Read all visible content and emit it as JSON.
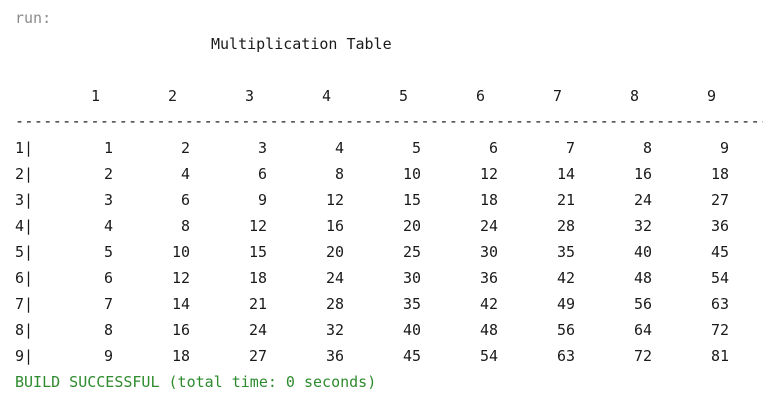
{
  "console": {
    "run_label": "run:",
    "title": "Multiplication Table",
    "header": [
      "1",
      "2",
      "3",
      "4",
      "5",
      "6",
      "7",
      "8",
      "9"
    ],
    "separator": "--------------------------------------------------------------------------------------------------",
    "rows": [
      {
        "label": "1|",
        "values": [
          "1",
          "2",
          "3",
          "4",
          "5",
          "6",
          "7",
          "8",
          "9"
        ]
      },
      {
        "label": "2|",
        "values": [
          "2",
          "4",
          "6",
          "8",
          "10",
          "12",
          "14",
          "16",
          "18"
        ]
      },
      {
        "label": "3|",
        "values": [
          "3",
          "6",
          "9",
          "12",
          "15",
          "18",
          "21",
          "24",
          "27"
        ]
      },
      {
        "label": "4|",
        "values": [
          "4",
          "8",
          "12",
          "16",
          "20",
          "24",
          "28",
          "32",
          "36"
        ]
      },
      {
        "label": "5|",
        "values": [
          "5",
          "10",
          "15",
          "20",
          "25",
          "30",
          "35",
          "40",
          "45"
        ]
      },
      {
        "label": "6|",
        "values": [
          "6",
          "12",
          "18",
          "24",
          "30",
          "36",
          "42",
          "48",
          "54"
        ]
      },
      {
        "label": "7|",
        "values": [
          "7",
          "14",
          "21",
          "28",
          "35",
          "42",
          "49",
          "56",
          "63"
        ]
      },
      {
        "label": "8|",
        "values": [
          "8",
          "16",
          "24",
          "32",
          "40",
          "48",
          "56",
          "64",
          "72"
        ]
      },
      {
        "label": "9|",
        "values": [
          "9",
          "18",
          "27",
          "36",
          "45",
          "54",
          "63",
          "72",
          "81"
        ]
      }
    ],
    "build_status": "BUILD SUCCESSFUL (total time: 0 seconds)",
    "colors": {
      "run_label": "#8a8a8a",
      "text": "#1a1a1a",
      "build_success": "#2e8b2e",
      "background": "#ffffff"
    }
  }
}
